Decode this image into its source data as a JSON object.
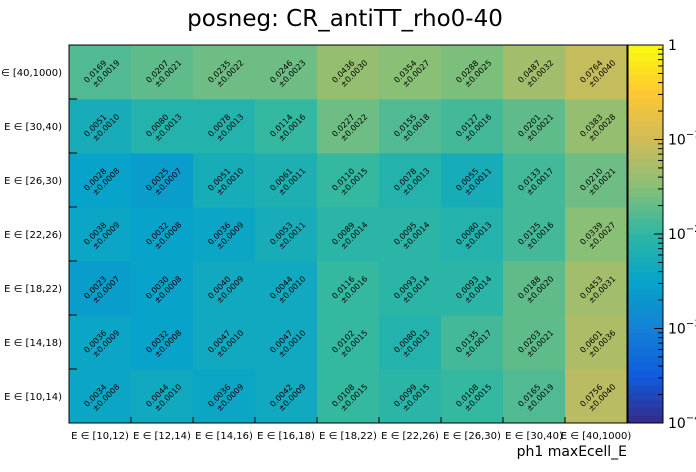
{
  "chart_data": {
    "type": "heatmap",
    "title": "posneg: CR_antiTT_rho0-40",
    "xlabel": "ph1 maxEcell_E",
    "ylabel": "",
    "x_categories": [
      "E ∈ [10,12)",
      "E ∈ [12,14)",
      "E ∈ [14,16)",
      "E ∈ [16,18)",
      "E ∈ [18,22)",
      "E ∈ [22,26)",
      "E ∈ [26,30)",
      "E ∈ [30,40)",
      "E ∈ [40,1000)"
    ],
    "y_categories": [
      "E ∈ [10,14)",
      "E ∈ [14,18)",
      "E ∈ [18,22)",
      "E ∈ [22,26)",
      "E ∈ [26,30)",
      "E ∈ [30,40)",
      "E ∈ [40,1000)"
    ],
    "values": [
      [
        "0.0034",
        "0.0044",
        "0.0036",
        "0.0042",
        "0.0108",
        "0.0099",
        "0.0108",
        "0.0165",
        "0.0756"
      ],
      [
        "0.0036",
        "0.0032",
        "0.0047",
        "0.0047",
        "0.0102",
        "0.0080",
        "0.0135",
        "0.0203",
        "0.0601"
      ],
      [
        "0.0023",
        "0.0030",
        "0.0040",
        "0.0044",
        "0.0116",
        "0.0093",
        "0.0093",
        "0.0188",
        "0.0453"
      ],
      [
        "0.0038",
        "0.0032",
        "0.0036",
        "0.0053",
        "0.0089",
        "0.0095",
        "0.0080",
        "0.0125",
        "0.0339"
      ],
      [
        "0.0028",
        "0.0025",
        "0.0051",
        "0.0061",
        "0.0110",
        "0.0078",
        "0.0055",
        "0.0133",
        "0.0210"
      ],
      [
        "0.0051",
        "0.0080",
        "0.0078",
        "0.0114",
        "0.0227",
        "0.0155",
        "0.0127",
        "0.0201",
        "0.0383"
      ],
      [
        "0.0169",
        "0.0207",
        "0.0235",
        "0.0246",
        "0.0436",
        "0.0354",
        "0.0288",
        "0.0487",
        "0.0764"
      ]
    ],
    "errors": [
      [
        "0.0008",
        "0.0010",
        "0.0009",
        "0.0009",
        "0.0015",
        "0.0015",
        "0.0015",
        "0.0019",
        "0.0040"
      ],
      [
        "0.0009",
        "0.0008",
        "0.0010",
        "0.0010",
        "0.0015",
        "0.0013",
        "0.0017",
        "0.0021",
        "0.0036"
      ],
      [
        "0.0007",
        "0.0008",
        "0.0009",
        "0.0010",
        "0.0016",
        "0.0014",
        "0.0014",
        "0.0020",
        "0.0031"
      ],
      [
        "0.0009",
        "0.0008",
        "0.0009",
        "0.0011",
        "0.0014",
        "0.0014",
        "0.0013",
        "0.0016",
        "0.0027"
      ],
      [
        "0.0008",
        "0.0007",
        "0.0010",
        "0.0011",
        "0.0015",
        "0.0013",
        "0.0011",
        "0.0017",
        "0.0021"
      ],
      [
        "0.0010",
        "0.0013",
        "0.0013",
        "0.0016",
        "0.0022",
        "0.0018",
        "0.0016",
        "0.0021",
        "0.0028"
      ],
      [
        "0.0019",
        "0.0021",
        "0.0022",
        "0.0023",
        "0.0030",
        "0.0027",
        "0.0025",
        "0.0032",
        "0.0040"
      ]
    ],
    "color_scale": "log",
    "zlim": [
      0.0001,
      1
    ],
    "colorbar_ticks": [
      {
        "value": 1,
        "label": "1"
      },
      {
        "value": 0.1,
        "base": "10",
        "exp": "−1"
      },
      {
        "value": 0.01,
        "base": "10",
        "exp": "−2"
      },
      {
        "value": 0.001,
        "base": "10",
        "exp": "−3"
      },
      {
        "value": 0.0001,
        "base": "10",
        "exp": "−4"
      }
    ],
    "error_prefix": "±",
    "palette": [
      "#352a87",
      "#0f5cdd",
      "#1481d6",
      "#06a4ca",
      "#2eb7a4",
      "#87bf77",
      "#d1bb59",
      "#fec832",
      "#f9fb0e"
    ],
    "grid": false,
    "legend": "colorbar-right"
  }
}
